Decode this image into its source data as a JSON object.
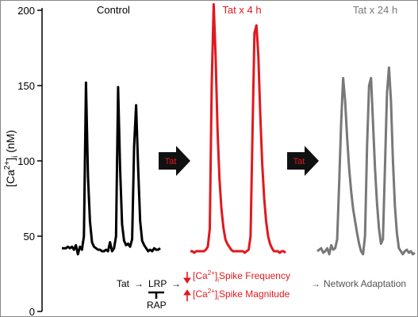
{
  "chart_data": {
    "type": "line",
    "ylabel": "[Ca2+]i (nM)",
    "ylabel_parts": {
      "base": "[Ca",
      "sup": "2+",
      "close": "]",
      "sub": "i",
      "unit": " (nM)"
    },
    "yticks": [
      0,
      50,
      100,
      150,
      200
    ],
    "ylim": [
      0,
      200
    ],
    "grid": false,
    "series": [
      {
        "name": "Control",
        "color": "#000000",
        "values": [
          42,
          42,
          42,
          43,
          42,
          43,
          41,
          44,
          38,
          43,
          41,
          50,
          152,
          90,
          60,
          46,
          43,
          42,
          41,
          41,
          40,
          40,
          41,
          40,
          46,
          40,
          42,
          50,
          149,
          95,
          58,
          47,
          44,
          45,
          43,
          48,
          110,
          137,
          95,
          60,
          47,
          44,
          42,
          40,
          41,
          40,
          42,
          41,
          41,
          42
        ]
      },
      {
        "name": "Tat x 4 h",
        "color": "#e0191e",
        "values": [
          40,
          40,
          39,
          40,
          40,
          40,
          40,
          40,
          41,
          43,
          55,
          150,
          204,
          170,
          120,
          88,
          68,
          56,
          48,
          45,
          43,
          41,
          40,
          40,
          40,
          40,
          40,
          40,
          39,
          40,
          41,
          50,
          120,
          185,
          190,
          170,
          130,
          98,
          75,
          60,
          50,
          45,
          42,
          40,
          40,
          40,
          39,
          40,
          40,
          39
        ]
      },
      {
        "name": "Tat x 24 h",
        "color": "#787878",
        "values": [
          40,
          41,
          42,
          39,
          40,
          42,
          38,
          44,
          41,
          42,
          48,
          85,
          125,
          155,
          140,
          115,
          95,
          80,
          68,
          60,
          52,
          45,
          40,
          38,
          50,
          110,
          150,
          155,
          125,
          95,
          72,
          55,
          45,
          48,
          95,
          145,
          162,
          140,
          100,
          70,
          52,
          42,
          40,
          38,
          40,
          41,
          39,
          40,
          38,
          39
        ]
      }
    ]
  },
  "arrows": [
    {
      "label": "Tat",
      "color": "#111111",
      "label_color": "#e0191e"
    },
    {
      "label": "Tat",
      "color": "#111111",
      "label_color": "#e0191e"
    }
  ],
  "schematic": {
    "tat": "Tat",
    "arrow": "→",
    "lrp": "LRP",
    "rap": "RAP",
    "line1": {
      "prefix": "[Ca",
      "sup": "2+",
      "close": "]",
      "sub": "i",
      "text": "Spike Frequency"
    },
    "line2": {
      "prefix": "[Ca",
      "sup": "2+",
      "close": "]",
      "sub": "i",
      "text": "Spike Magnitude"
    },
    "outcome": "Network Adaptation",
    "effect_color": "#e0191e",
    "outcome_color": "#555555"
  }
}
